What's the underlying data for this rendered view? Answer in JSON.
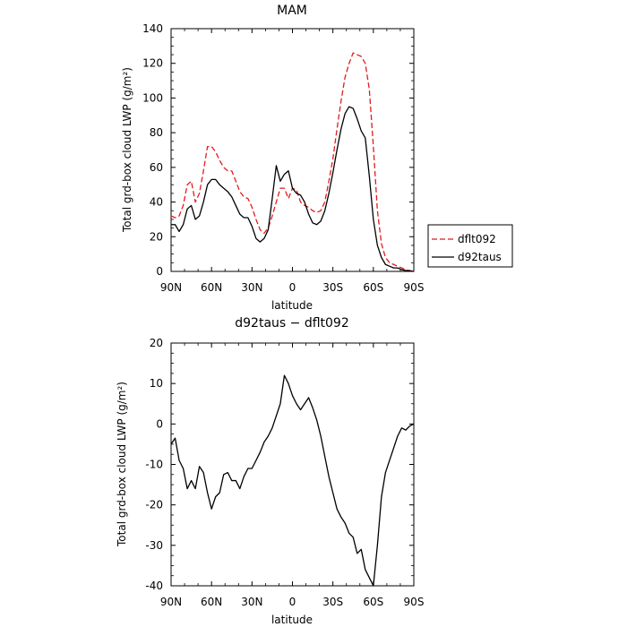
{
  "chart_data": [
    {
      "type": "line",
      "title": "MAM",
      "xlabel": "latitude",
      "ylabel": "Total grd-box cloud LWP (g/m²)",
      "x_tick_labels": [
        "90N",
        "60N",
        "30N",
        "0",
        "30S",
        "60S",
        "90S"
      ],
      "xlim": [
        90,
        -90
      ],
      "ylim": [
        0,
        140
      ],
      "y_ticks": [
        0,
        20,
        40,
        60,
        80,
        100,
        120,
        140
      ],
      "legend_position": "right",
      "colors": {
        "dflt092": "#e41a1c",
        "d92taus": "#000000"
      },
      "x": [
        90,
        87,
        84,
        81,
        78,
        75,
        72,
        69,
        66,
        63,
        60,
        57,
        54,
        51,
        48,
        45,
        42,
        39,
        36,
        33,
        30,
        27,
        24,
        21,
        18,
        15,
        12,
        9,
        6,
        3,
        0,
        -3,
        -6,
        -9,
        -12,
        -15,
        -18,
        -21,
        -24,
        -27,
        -30,
        -33,
        -36,
        -39,
        -42,
        -45,
        -48,
        -51,
        -54,
        -57,
        -60,
        -63,
        -66,
        -69,
        -72,
        -75,
        -78,
        -81,
        -84,
        -87,
        -90
      ],
      "series": [
        {
          "name": "dflt092",
          "style": "dashed",
          "values": [
            32,
            31,
            32,
            38,
            50,
            52,
            40,
            45,
            58,
            72,
            72,
            69,
            64,
            60,
            58,
            58,
            52,
            46,
            43,
            42,
            37,
            30,
            24,
            22,
            25,
            32,
            40,
            48,
            48,
            42,
            48,
            47,
            40,
            38,
            37,
            35,
            34,
            35,
            40,
            52,
            65,
            82,
            98,
            112,
            120,
            126,
            125,
            124,
            120,
            105,
            72,
            35,
            16,
            8,
            5,
            4,
            3,
            2,
            1,
            0.5,
            0
          ]
        },
        {
          "name": "d92taus",
          "style": "solid",
          "values": [
            27,
            27,
            23,
            27,
            36,
            38,
            30,
            32,
            40,
            50,
            53,
            53,
            50,
            48,
            46,
            43,
            38,
            33,
            31,
            31,
            26,
            19,
            17,
            19,
            24,
            42,
            61,
            52,
            56,
            58,
            48,
            45,
            44,
            40,
            33,
            28,
            27,
            29,
            35,
            45,
            57,
            70,
            82,
            91,
            95,
            94,
            88,
            81,
            77,
            55,
            30,
            15,
            8,
            4,
            3,
            2,
            2,
            1,
            0.5,
            0.3,
            0
          ]
        }
      ]
    },
    {
      "type": "line",
      "title": "d92taus − dflt092",
      "xlabel": "latitude",
      "ylabel": "Total grd-box cloud LWP (g/m²)",
      "x_tick_labels": [
        "90N",
        "60N",
        "30N",
        "0",
        "30S",
        "60S",
        "90S"
      ],
      "xlim": [
        90,
        -90
      ],
      "ylim": [
        -40,
        20
      ],
      "y_ticks": [
        -40,
        -30,
        -20,
        -10,
        0,
        10,
        20
      ],
      "colors": {
        "diff": "#000000"
      },
      "x": [
        90,
        87,
        84,
        81,
        78,
        75,
        72,
        69,
        66,
        63,
        60,
        57,
        54,
        51,
        48,
        45,
        42,
        39,
        36,
        33,
        30,
        27,
        24,
        21,
        18,
        15,
        12,
        9,
        6,
        3,
        0,
        -3,
        -6,
        -9,
        -12,
        -15,
        -18,
        -21,
        -24,
        -27,
        -30,
        -33,
        -36,
        -39,
        -42,
        -45,
        -48,
        -51,
        -54,
        -57,
        -60,
        -63,
        -66,
        -69,
        -72,
        -75,
        -78,
        -81,
        -84,
        -87,
        -90
      ],
      "series": [
        {
          "name": "",
          "values": [
            -5,
            -3.5,
            -9,
            -11,
            -16,
            -14,
            -16,
            -10.5,
            -12,
            -17,
            -21,
            -18,
            -17,
            -12.5,
            -12,
            -14,
            -14,
            -16,
            -13,
            -11,
            -11,
            -9,
            -7,
            -4.5,
            -3,
            -1,
            2,
            5,
            12,
            10,
            7,
            5,
            3.5,
            5,
            6.5,
            4,
            1,
            -3,
            -8,
            -13,
            -17,
            -21,
            -23,
            -24.5,
            -27,
            -28,
            -32,
            -31,
            -36,
            -38,
            -40,
            -30,
            -18,
            -12,
            -9,
            -6,
            -3,
            -1,
            -1.5,
            -0.5,
            0
          ]
        }
      ]
    }
  ],
  "legend": {
    "items": [
      {
        "label": "dflt092"
      },
      {
        "label": "d92taus"
      }
    ]
  }
}
